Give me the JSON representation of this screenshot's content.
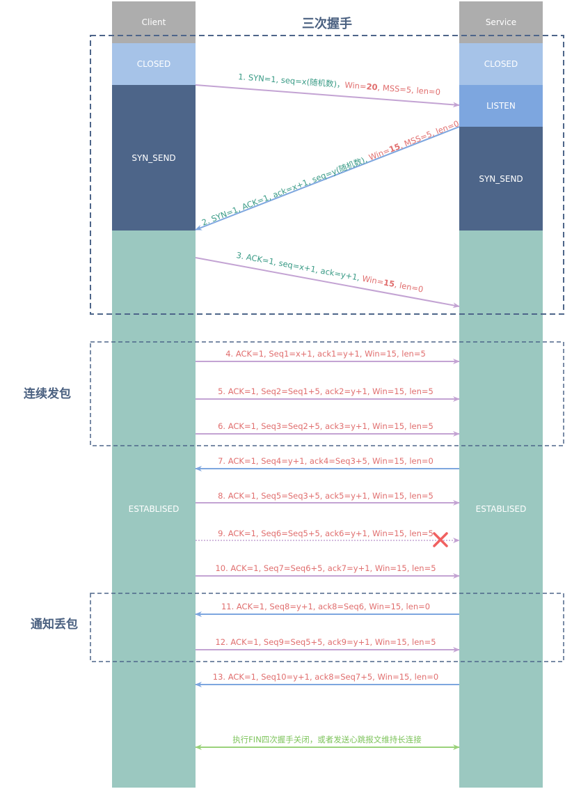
{
  "title": "三次握手",
  "client": {
    "header": "Client",
    "states": [
      "CLOSED",
      "SYN_SEND",
      "ESTABLISED"
    ]
  },
  "server": {
    "header": "Service",
    "states": [
      "CLOSED",
      "LISTEN",
      "SYN_SEND",
      "ESTABLISED"
    ]
  },
  "sections": {
    "continuous_send": "连续发包",
    "notify_loss": "通知丢包"
  },
  "colors": {
    "header_gray": "#adadad",
    "closed": "#a6c3e8",
    "listen": "#7da6df",
    "syn_send": "#4d6589",
    "established": "#9bc8c0",
    "arrow_purple": "#c3a3d3",
    "arrow_blue": "#7da6df",
    "arrow_green": "#9ad27a",
    "text_teal": "#3a9b86",
    "text_red": "#e06e6e",
    "dash_border": "#4d6589",
    "cross_red": "#f06060"
  },
  "messages": {
    "m1": {
      "teal": "1. SYN=1, seq=x(随机数)，",
      "red_a": "Win=",
      "red_bold": "20",
      "red_b": ", MSS=5, len=0"
    },
    "m2": {
      "teal": "2. SYN=1, ACK=1, ack=x+1, seq=y(随机数), ",
      "red_a": "Win=",
      "red_bold": "15",
      "red_b": ", MSS=5, len=0"
    },
    "m3": {
      "teal": "3. ACK=1, seq=x+1, ack=y+1, ",
      "red_a": "Win=",
      "red_bold": "15",
      "red_b": ", len=0"
    },
    "m4": "4. ACK=1,  Seq1=x+1, ack1=y+1, Win=15, len=5",
    "m5": "5. ACK=1,  Seq2=Seq1+5, ack2=y+1, Win=15, len=5",
    "m6": "6. ACK=1,  Seq3=Seq2+5, ack3=y+1, Win=15, len=5",
    "m7": "7. ACK=1,  Seq4=y+1, ack4=Seq3+5, Win=15, len=0",
    "m8": "8. ACK=1,  Seq5=Seq3+5, ack5=y+1, Win=15, len=5",
    "m9": "9. ACK=1,  Seq6=Seq5+5, ack6=y+1, Win=15, len=5",
    "m10": "10. ACK=1,  Seq7=Seq6+5, ack7=y+1, Win=15, len=5",
    "m11": "11. ACK=1,  Seq8=y+1, ack8=Seq6, Win=15, len=0",
    "m12": "12. ACK=1,  Seq9=Seq5+5, ack9=y+1, Win=15, len=5",
    "m13": "13. ACK=1,  Seq10=y+1, ack8=Seq7+5, Win=15, len=0",
    "m14": "执行FIN四次握手关闭，或者发送心跳报文维持长连接"
  }
}
